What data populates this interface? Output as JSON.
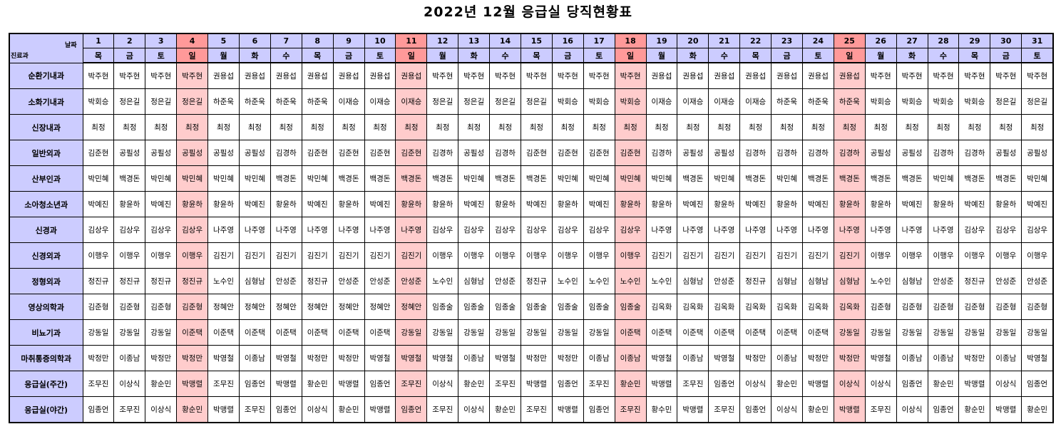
{
  "title": "2022년 12월 응급실 당직현황표",
  "header": {
    "corner_top": "날짜",
    "corner_bottom": "진료과",
    "days": [
      1,
      2,
      3,
      4,
      5,
      6,
      7,
      8,
      9,
      10,
      11,
      12,
      13,
      14,
      15,
      16,
      17,
      18,
      19,
      20,
      21,
      22,
      23,
      24,
      25,
      26,
      27,
      28,
      29,
      30,
      31
    ],
    "weekdays": [
      "목",
      "금",
      "토",
      "일",
      "월",
      "화",
      "수",
      "목",
      "금",
      "토",
      "일",
      "월",
      "화",
      "수",
      "목",
      "금",
      "토",
      "일",
      "월",
      "화",
      "수",
      "목",
      "금",
      "토",
      "일",
      "월",
      "화",
      "수",
      "목",
      "금",
      "토"
    ]
  },
  "rows": [
    {
      "department": "순환기내과",
      "duty": [
        "박주현",
        "박주현",
        "박주현",
        "박주현",
        "권용섭",
        "권용섭",
        "권용섭",
        "권용섭",
        "권용섭",
        "권용섭",
        "권용섭",
        "박주현",
        "박주현",
        "박주현",
        "박주현",
        "박주현",
        "박주현",
        "박주현",
        "권용섭",
        "권용섭",
        "권용섭",
        "권용섭",
        "권용섭",
        "권용섭",
        "권용섭",
        "박주현",
        "박주현",
        "박주현",
        "박주현",
        "박주현",
        "박주현"
      ]
    },
    {
      "department": "소화기내과",
      "duty": [
        "박회승",
        "정은길",
        "정은길",
        "정은길",
        "하준욱",
        "하준욱",
        "하준욱",
        "하준욱",
        "이재승",
        "이재승",
        "이재승",
        "정은길",
        "정은길",
        "정은길",
        "정은길",
        "박회승",
        "박회승",
        "박회승",
        "이재승",
        "이재승",
        "이재승",
        "이재승",
        "하준욱",
        "하준욱",
        "하준욱",
        "박회승",
        "박회승",
        "박회승",
        "박회승",
        "정은길",
        "정은길"
      ]
    },
    {
      "department": "신장내과",
      "duty": [
        "최정",
        "최정",
        "최정",
        "최정",
        "최정",
        "최정",
        "최정",
        "최정",
        "최정",
        "최정",
        "최정",
        "최정",
        "최정",
        "최정",
        "최정",
        "최정",
        "최정",
        "최정",
        "최정",
        "최정",
        "최정",
        "최정",
        "최정",
        "최정",
        "최정",
        "최정",
        "최정",
        "최정",
        "최정",
        "최정",
        "최정"
      ]
    },
    {
      "department": "일반외과",
      "duty": [
        "김준현",
        "공필성",
        "공필성",
        "공필성",
        "공필성",
        "공필성",
        "김경하",
        "김준현",
        "김준현",
        "김준현",
        "김준현",
        "김경하",
        "공필성",
        "김경하",
        "김준현",
        "김준현",
        "김준현",
        "김준현",
        "김경하",
        "공필성",
        "공필성",
        "김경하",
        "김경하",
        "김경하",
        "김경하",
        "공필성",
        "공필성",
        "김경하",
        "김경하",
        "공필성",
        "공필성"
      ]
    },
    {
      "department": "산부인과",
      "duty": [
        "박민혜",
        "백경돈",
        "박민혜",
        "박민혜",
        "박민혜",
        "박민혜",
        "백경돈",
        "박민혜",
        "백경돈",
        "백경돈",
        "백경돈",
        "백경돈",
        "박민혜",
        "백경돈",
        "백경돈",
        "박민혜",
        "박민혜",
        "박민혜",
        "박민혜",
        "백경돈",
        "박민혜",
        "백경돈",
        "박민혜",
        "백경돈",
        "백경돈",
        "백경돈",
        "백경돈",
        "박민혜",
        "백경돈",
        "백경돈",
        "박민혜"
      ]
    },
    {
      "department": "소아청소년과",
      "duty": [
        "박예진",
        "황윤하",
        "박예진",
        "황윤하",
        "황윤하",
        "박예진",
        "황윤하",
        "박예진",
        "황윤하",
        "박예진",
        "황윤하",
        "황윤하",
        "박예진",
        "황윤하",
        "박예진",
        "황윤하",
        "박예진",
        "황윤하",
        "황윤하",
        "박예진",
        "황윤하",
        "박예진",
        "황윤하",
        "박예진",
        "황윤하",
        "황윤하",
        "박예진",
        "황윤하",
        "박예진",
        "황윤하",
        "박예진"
      ]
    },
    {
      "department": "신경과",
      "duty": [
        "김상우",
        "김상우",
        "김상우",
        "김상우",
        "나주영",
        "나주영",
        "나주영",
        "나주영",
        "나주영",
        "나주영",
        "나주영",
        "김상우",
        "김상우",
        "김상우",
        "김상우",
        "김상우",
        "김상우",
        "김상우",
        "나주영",
        "나주영",
        "나주영",
        "나주영",
        "나주영",
        "나주영",
        "나주영",
        "나주영",
        "나주영",
        "나주영",
        "김상우",
        "김상우",
        "김상우"
      ]
    },
    {
      "department": "신경외과",
      "duty": [
        "이행우",
        "이행우",
        "이행우",
        "이행우",
        "김진기",
        "김진기",
        "김진기",
        "김진기",
        "김진기",
        "김진기",
        "김진기",
        "이행우",
        "이행우",
        "이행우",
        "이행우",
        "이행우",
        "이행우",
        "이행우",
        "김진기",
        "김진기",
        "김진기",
        "김진기",
        "김진기",
        "김진기",
        "김진기",
        "이행우",
        "이행우",
        "이행우",
        "이행우",
        "이행우",
        "이행우"
      ]
    },
    {
      "department": "정형외과",
      "duty": [
        "정진규",
        "정진규",
        "정진규",
        "정진규",
        "노수인",
        "심형남",
        "안성준",
        "정진규",
        "안성준",
        "안성준",
        "안성준",
        "노수인",
        "심형남",
        "안성준",
        "정진규",
        "노수인",
        "노수인",
        "노수인",
        "노수인",
        "심형남",
        "안성준",
        "정진규",
        "심형남",
        "심형남",
        "심형남",
        "노수인",
        "심형남",
        "안성준",
        "정진규",
        "안성준",
        "안성준"
      ]
    },
    {
      "department": "영상의학과",
      "duty": [
        "김준형",
        "김준형",
        "김준형",
        "김준형",
        "정혜안",
        "정혜안",
        "정혜안",
        "정혜안",
        "정혜안",
        "정혜안",
        "정혜안",
        "임종술",
        "임종술",
        "임종술",
        "임종술",
        "임종술",
        "임종술",
        "임종술",
        "김옥화",
        "김옥화",
        "김옥화",
        "김옥화",
        "김옥화",
        "김옥화",
        "김옥화",
        "김준형",
        "김준형",
        "김준형",
        "김준형",
        "김준형",
        "김준형"
      ]
    },
    {
      "department": "비뇨기과",
      "duty": [
        "강동일",
        "강동일",
        "강동일",
        "이준택",
        "이준택",
        "이준택",
        "이준택",
        "이준택",
        "이준택",
        "이준택",
        "강동일",
        "강동일",
        "강동일",
        "강동일",
        "강동일",
        "강동일",
        "강동일",
        "이준택",
        "이준택",
        "이준택",
        "이준택",
        "이준택",
        "이준택",
        "이준택",
        "강동일",
        "강동일",
        "강동일",
        "강동일",
        "강동일",
        "강동일",
        "강동일"
      ]
    },
    {
      "department": "마취통증의학과",
      "duty": [
        "박정만",
        "이종남",
        "박정만",
        "박정만",
        "박영철",
        "이종남",
        "박영철",
        "박정만",
        "박정만",
        "박영철",
        "박영철",
        "박영철",
        "이종남",
        "박영철",
        "박정만",
        "박정만",
        "이종남",
        "이종남",
        "박영철",
        "이종남",
        "박영철",
        "박정만",
        "이종남",
        "박정만",
        "박정만",
        "박영철",
        "이종남",
        "이종남",
        "박정만",
        "이종남",
        "박영철"
      ]
    },
    {
      "department": "응급실(주간)",
      "duty": [
        "조무진",
        "이상식",
        "황순민",
        "박맹렬",
        "조무진",
        "임종언",
        "박맹렬",
        "황순민",
        "박맹렬",
        "임종언",
        "조무진",
        "이상식",
        "황순민",
        "조무진",
        "박맹렬",
        "임종언",
        "조무진",
        "황순민",
        "박맹렬",
        "조무진",
        "임종언",
        "이상식",
        "황순민",
        "박맹렬",
        "이상식",
        "이상식",
        "임종언",
        "황순민",
        "박맹렬",
        "이상식",
        "임종언"
      ]
    },
    {
      "department": "응급실(야간)",
      "duty": [
        "임종언",
        "조무진",
        "이상식",
        "황순민",
        "박맹렬",
        "조무진",
        "임종언",
        "이상식",
        "황순민",
        "박맹렬",
        "임종언",
        "조무진",
        "이상식",
        "황순민",
        "조무진",
        "박맹렬",
        "임종언",
        "조무진",
        "황수민",
        "박맹렬",
        "조무진",
        "임종언",
        "이상식",
        "황순민",
        "박맹렬",
        "조무진",
        "이상식",
        "임종언",
        "황순민",
        "박맹렬",
        "황순민"
      ]
    }
  ]
}
